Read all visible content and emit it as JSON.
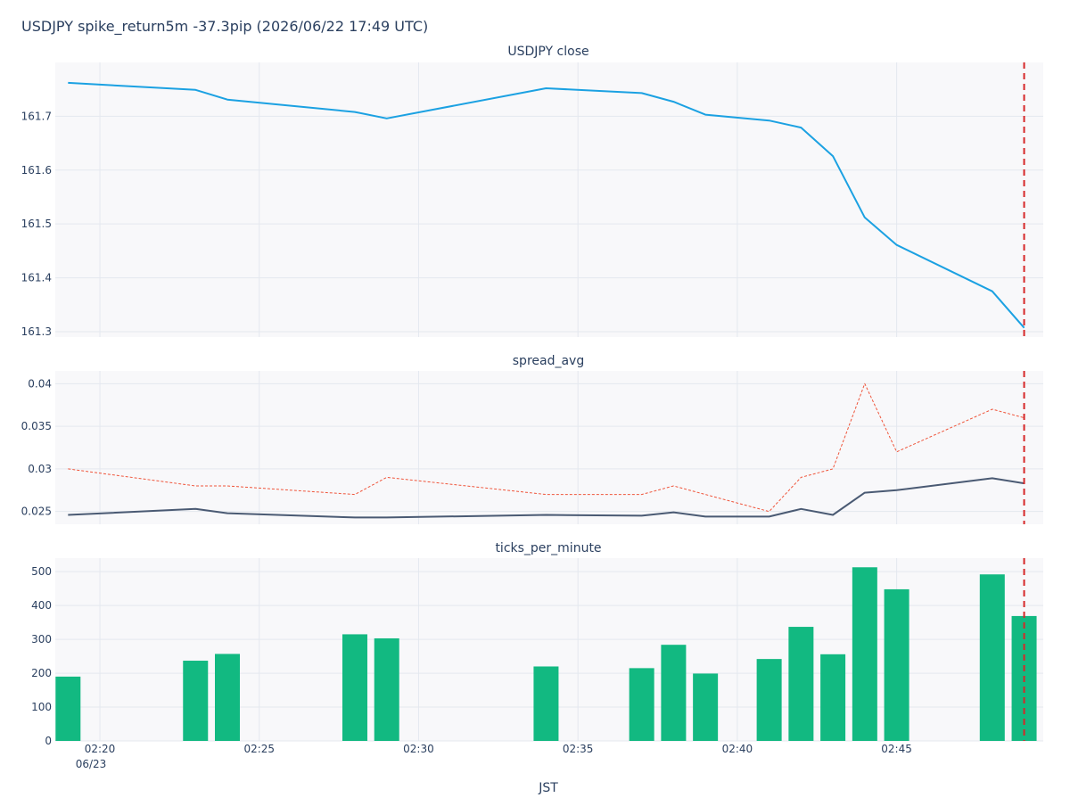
{
  "title": "USDJPY spike_return5m -37.3pip (2026/06/22 17:49 UTC)",
  "xlabel": "JST",
  "x_ticks": [
    "02:20",
    "02:25",
    "02:30",
    "02:35",
    "02:40",
    "02:45"
  ],
  "x_tick_date": "06/23",
  "event_marker": {
    "time": "02:49",
    "color": "#d62728"
  },
  "chart_data": [
    {
      "type": "line",
      "title": "USDJPY close",
      "x": [
        "02:19",
        "02:23",
        "02:24",
        "02:28",
        "02:29",
        "02:34",
        "02:37",
        "02:38",
        "02:39",
        "02:41",
        "02:42",
        "02:43",
        "02:44",
        "02:45",
        "02:48",
        "02:49"
      ],
      "series": [
        {
          "values": [
            161.762,
            161.749,
            161.731,
            161.708,
            161.696,
            161.752,
            161.743,
            161.727,
            161.703,
            161.692,
            161.679,
            161.626,
            161.512,
            161.461,
            161.375,
            161.307
          ],
          "color": "#1ba1e2"
        }
      ],
      "yticks": [
        161.3,
        161.4,
        161.5,
        161.6,
        161.7
      ],
      "ylim": [
        161.29,
        161.8
      ],
      "grid": true
    },
    {
      "type": "line",
      "title": "spread_avg",
      "x": [
        "02:19",
        "02:23",
        "02:24",
        "02:28",
        "02:29",
        "02:34",
        "02:37",
        "02:38",
        "02:39",
        "02:41",
        "02:42",
        "02:43",
        "02:44",
        "02:45",
        "02:48",
        "02:49"
      ],
      "series": [
        {
          "values": [
            0.0246,
            0.0253,
            0.0248,
            0.0243,
            0.0243,
            0.0246,
            0.0245,
            0.0249,
            0.0244,
            0.0244,
            0.0253,
            0.0246,
            0.0272,
            0.0275,
            0.0289,
            0.0283
          ],
          "color": "#4a5a73",
          "dash": "solid"
        },
        {
          "values": [
            0.03,
            0.028,
            0.028,
            0.027,
            0.029,
            0.027,
            0.027,
            0.028,
            0.027,
            0.025,
            0.029,
            0.03,
            0.04,
            0.032,
            0.037,
            0.036
          ],
          "color": "#ef553b",
          "dash": "dotted"
        }
      ],
      "yticks": [
        0.025,
        0.03,
        0.035,
        0.04
      ],
      "ylim": [
        0.0235,
        0.0415
      ],
      "grid": true
    },
    {
      "type": "bar",
      "title": "ticks_per_minute",
      "x": [
        "02:19",
        "02:23",
        "02:24",
        "02:28",
        "02:29",
        "02:34",
        "02:37",
        "02:38",
        "02:39",
        "02:41",
        "02:42",
        "02:43",
        "02:44",
        "02:45",
        "02:48",
        "02:49"
      ],
      "values": [
        190,
        237,
        257,
        315,
        303,
        220,
        215,
        284,
        199,
        242,
        337,
        256,
        513,
        448,
        492,
        369
      ],
      "color": "#12b981",
      "yticks": [
        0,
        100,
        200,
        300,
        400,
        500
      ],
      "ylim": [
        0,
        540
      ],
      "grid": true
    }
  ]
}
